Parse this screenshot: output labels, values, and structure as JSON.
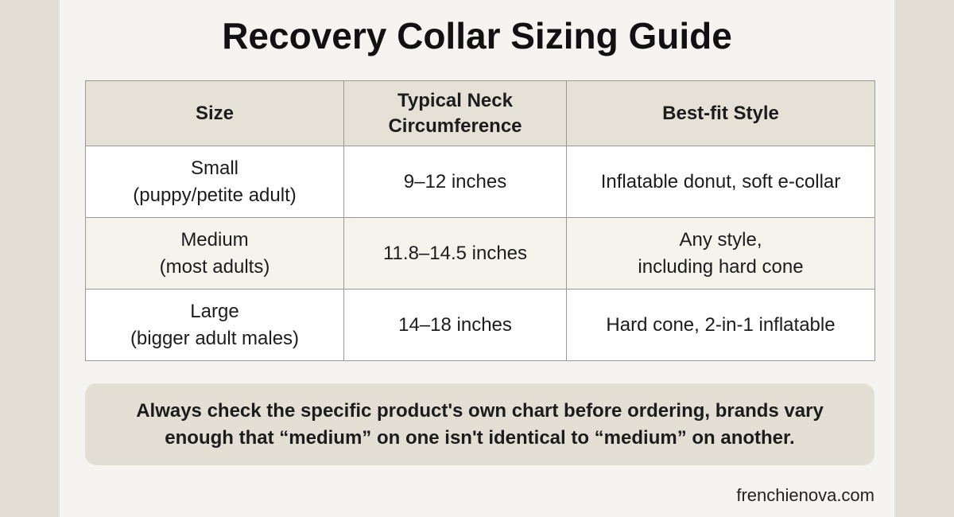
{
  "title": "Recovery Collar Sizing Guide",
  "table": {
    "header": [
      [
        "Size"
      ],
      [
        "Typical Neck",
        "Circumference"
      ],
      [
        "Best-fit Style"
      ]
    ],
    "rows": [
      [
        [
          "Small",
          "(puppy/petite adult)"
        ],
        [
          "9–12 inches"
        ],
        [
          "Inflatable donut, soft e-collar"
        ]
      ],
      [
        [
          "Medium",
          "(most adults)"
        ],
        [
          "11.8–14.5 inches"
        ],
        [
          "Any style,",
          "including hard cone"
        ]
      ],
      [
        [
          "Large",
          "(bigger adult males)"
        ],
        [
          "14–18 inches"
        ],
        [
          "Hard cone, 2-in-1 inflatable"
        ]
      ]
    ]
  },
  "note": [
    "Always check the specific product's own chart before ordering, brands vary",
    "enough that “medium” on one isn't identical to “medium” on another."
  ],
  "footer": "frenchienova.com"
}
